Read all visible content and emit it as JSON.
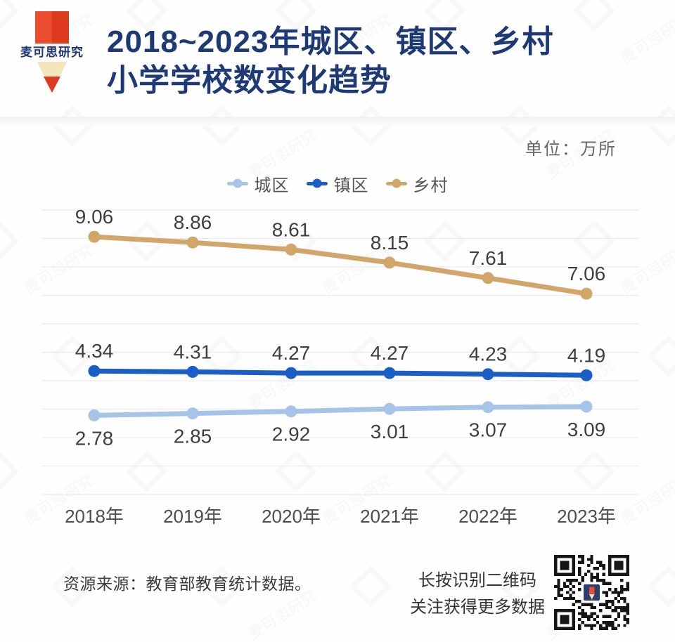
{
  "brand": {
    "name": "麦可思研究"
  },
  "header": {
    "title_line1": "2018~2023年城区、镇区、乡村",
    "title_line2": "小学学校数变化趋势",
    "title_color": "#1e3a76"
  },
  "chart_data": {
    "type": "line",
    "title": "2018~2023年城区、镇区、乡村小学学校数变化趋势",
    "unit_label": "单位：万所",
    "categories": [
      "2018年",
      "2019年",
      "2020年",
      "2021年",
      "2022年",
      "2023年"
    ],
    "series": [
      {
        "name": "城区",
        "key": "city",
        "color": "#a6c3e8",
        "label_position": "below",
        "values": [
          2.78,
          2.85,
          2.92,
          3.01,
          3.07,
          3.09
        ]
      },
      {
        "name": "镇区",
        "key": "town",
        "color": "#1a5fc8",
        "label_position": "above",
        "values": [
          4.34,
          4.31,
          4.27,
          4.27,
          4.23,
          4.19
        ]
      },
      {
        "name": "乡村",
        "key": "rural",
        "color": "#d2a569",
        "label_position": "above",
        "values": [
          9.06,
          8.86,
          8.61,
          8.15,
          7.61,
          7.06
        ]
      }
    ],
    "ylim": [
      0,
      10
    ],
    "gridline_step": 1,
    "grid": true,
    "legend_position": "top-center",
    "gridline_color": "#eaeaea",
    "value_label_color": "#3f3f3f",
    "axis_label_color": "#4d4d4d"
  },
  "footer": {
    "source": "资源来源：教育部教育统计数据。",
    "qr_caption_line1": "长按识别二维码",
    "qr_caption_line2": "关注获得更多数据",
    "qr_alt": "qr-code"
  }
}
